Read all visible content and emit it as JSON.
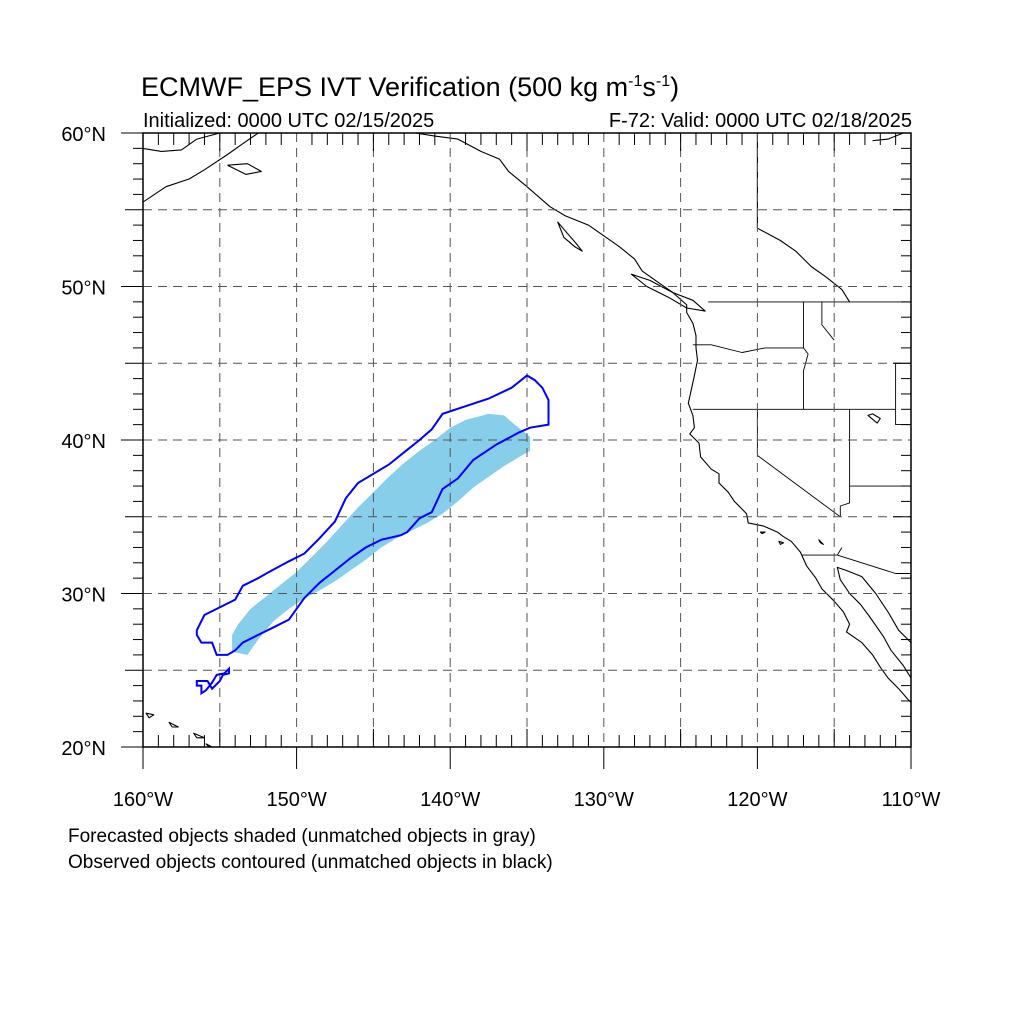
{
  "title": {
    "prefix": "ECMWF_EPS IVT Verification (500 kg m",
    "exp1": "-1",
    "mid": "s",
    "exp2": "-1",
    "suffix": ")"
  },
  "initialized": "Initialized: 0000 UTC 02/15/2025",
  "valid": "F-72: Valid: 0000 UTC 02/18/2025",
  "footnotes": [
    "Forecasted objects shaded (unmatched objects in gray)",
    "Observed objects contoured (unmatched objects in black)"
  ],
  "map": {
    "lon_range": [
      -160,
      -110
    ],
    "lat_range": [
      20,
      60
    ],
    "lon_labels": [
      {
        "lon": -160,
        "text": "160°W"
      },
      {
        "lon": -150,
        "text": "150°W"
      },
      {
        "lon": -140,
        "text": "140°W"
      },
      {
        "lon": -130,
        "text": "130°W"
      },
      {
        "lon": -120,
        "text": "120°W"
      },
      {
        "lon": -110,
        "text": "110°W"
      }
    ],
    "lat_labels": [
      {
        "lat": 60,
        "text": "60°N"
      },
      {
        "lat": 50,
        "text": "50°N"
      },
      {
        "lat": 40,
        "text": "40°N"
      },
      {
        "lat": 30,
        "text": "30°N"
      },
      {
        "lat": 20,
        "text": "20°N"
      }
    ],
    "colors": {
      "forecast_fill": "#87ceeb",
      "observed_contour": "#0000ff",
      "coast": "#000000",
      "grid": "#555555"
    },
    "forecast_object": [
      [
        -154.2,
        27.3
      ],
      [
        -153.8,
        28.0
      ],
      [
        -153.0,
        29.0
      ],
      [
        -152.0,
        29.8
      ],
      [
        -151.0,
        30.6
      ],
      [
        -150.0,
        31.4
      ],
      [
        -149.0,
        32.4
      ],
      [
        -148.0,
        33.4
      ],
      [
        -147.0,
        34.5
      ],
      [
        -146.0,
        35.6
      ],
      [
        -145.0,
        36.6
      ],
      [
        -144.0,
        37.6
      ],
      [
        -143.0,
        38.5
      ],
      [
        -142.0,
        39.3
      ],
      [
        -141.0,
        40.0
      ],
      [
        -140.0,
        40.8
      ],
      [
        -139.0,
        41.3
      ],
      [
        -137.5,
        41.7
      ],
      [
        -136.5,
        41.6
      ],
      [
        -135.8,
        41.0
      ],
      [
        -134.8,
        40.2
      ],
      [
        -134.8,
        39.3
      ],
      [
        -135.5,
        38.9
      ],
      [
        -136.5,
        38.3
      ],
      [
        -137.5,
        37.6
      ],
      [
        -138.5,
        36.9
      ],
      [
        -139.5,
        36.0
      ],
      [
        -140.5,
        35.2
      ],
      [
        -141.5,
        34.6
      ],
      [
        -142.5,
        34.1
      ],
      [
        -143.5,
        33.6
      ],
      [
        -144.5,
        33.0
      ],
      [
        -145.5,
        32.2
      ],
      [
        -146.5,
        31.5
      ],
      [
        -147.5,
        30.8
      ],
      [
        -148.5,
        30.2
      ],
      [
        -149.5,
        29.7
      ],
      [
        -150.5,
        29.0
      ],
      [
        -151.5,
        28.2
      ],
      [
        -152.5,
        27.0
      ],
      [
        -153.2,
        26.0
      ],
      [
        -154.2,
        26.2
      ]
    ],
    "observed_object": [
      [
        -156.5,
        27.6
      ],
      [
        -156.0,
        28.6
      ],
      [
        -155.2,
        29.0
      ],
      [
        -154.0,
        29.6
      ],
      [
        -153.5,
        30.5
      ],
      [
        -152.5,
        31.0
      ],
      [
        -151.8,
        31.4
      ],
      [
        -150.5,
        32.1
      ],
      [
        -149.5,
        32.6
      ],
      [
        -148.5,
        33.6
      ],
      [
        -147.5,
        34.7
      ],
      [
        -146.8,
        36.2
      ],
      [
        -146.0,
        37.2
      ],
      [
        -145.0,
        37.8
      ],
      [
        -144.0,
        38.4
      ],
      [
        -143.0,
        39.2
      ],
      [
        -142.0,
        40.0
      ],
      [
        -141.2,
        40.7
      ],
      [
        -140.5,
        41.7
      ],
      [
        -139.0,
        42.2
      ],
      [
        -137.5,
        42.7
      ],
      [
        -136.0,
        43.4
      ],
      [
        -135.0,
        44.2
      ],
      [
        -134.5,
        43.9
      ],
      [
        -134.0,
        43.4
      ],
      [
        -133.6,
        42.6
      ],
      [
        -133.6,
        41.0
      ],
      [
        -134.8,
        40.8
      ],
      [
        -135.5,
        40.5
      ],
      [
        -137.0,
        39.7
      ],
      [
        -138.5,
        38.7
      ],
      [
        -139.5,
        37.5
      ],
      [
        -140.5,
        36.8
      ],
      [
        -141.2,
        35.3
      ],
      [
        -142.0,
        34.9
      ],
      [
        -142.8,
        34.0
      ],
      [
        -143.2,
        33.8
      ],
      [
        -144.5,
        33.5
      ],
      [
        -145.5,
        33.0
      ],
      [
        -146.5,
        32.3
      ],
      [
        -147.5,
        31.5
      ],
      [
        -148.5,
        30.7
      ],
      [
        -149.5,
        29.7
      ],
      [
        -150.5,
        28.3
      ],
      [
        -151.5,
        27.8
      ],
      [
        -152.5,
        27.3
      ],
      [
        -153.5,
        26.8
      ],
      [
        -154.0,
        26.3
      ],
      [
        -154.5,
        26.0
      ],
      [
        -155.2,
        26.0
      ],
      [
        -155.5,
        26.8
      ],
      [
        -156.2,
        26.8
      ],
      [
        -156.5,
        27.3
      ]
    ],
    "observed_small": [
      [
        -156.5,
        24.3
      ],
      [
        -155.8,
        24.3
      ],
      [
        -155.5,
        23.8
      ],
      [
        -155.0,
        24.3
      ],
      [
        -154.8,
        24.7
      ],
      [
        -154.4,
        24.8
      ],
      [
        -154.4,
        25.1
      ],
      [
        -154.7,
        24.8
      ],
      [
        -155.2,
        24.7
      ],
      [
        -155.5,
        24.2
      ],
      [
        -155.9,
        23.7
      ],
      [
        -156.2,
        23.5
      ],
      [
        -156.2,
        24.0
      ],
      [
        -156.5,
        24.0
      ]
    ],
    "coastline_na": [
      [
        -148.5,
        60.0
      ],
      [
        -146.5,
        60.8
      ],
      [
        -143.5,
        60.2
      ],
      [
        -141.0,
        59.8
      ],
      [
        -139.5,
        59.6
      ],
      [
        -138.0,
        58.8
      ],
      [
        -136.8,
        58.3
      ],
      [
        -136.2,
        57.5
      ],
      [
        -135.0,
        56.5
      ],
      [
        -133.5,
        55.2
      ],
      [
        -132.5,
        54.6
      ],
      [
        -131.0,
        54.0
      ],
      [
        -130.0,
        53.3
      ],
      [
        -129.0,
        52.6
      ],
      [
        -128.0,
        51.8
      ],
      [
        -127.5,
        51.0
      ],
      [
        -126.5,
        50.3
      ],
      [
        -125.5,
        49.6
      ],
      [
        -124.6,
        48.8
      ],
      [
        -124.6,
        48.3
      ],
      [
        -124.2,
        47.6
      ],
      [
        -124.0,
        46.8
      ],
      [
        -124.0,
        46.0
      ],
      [
        -123.9,
        45.2
      ],
      [
        -124.1,
        44.2
      ],
      [
        -124.3,
        43.3
      ],
      [
        -124.5,
        42.4
      ],
      [
        -124.2,
        41.6
      ],
      [
        -124.1,
        40.8
      ],
      [
        -124.4,
        40.4
      ],
      [
        -123.8,
        39.8
      ],
      [
        -123.7,
        38.9
      ],
      [
        -123.0,
        38.1
      ],
      [
        -122.5,
        37.8
      ],
      [
        -122.5,
        37.2
      ],
      [
        -121.9,
        36.6
      ],
      [
        -121.5,
        36.0
      ],
      [
        -120.7,
        35.2
      ],
      [
        -120.6,
        34.6
      ],
      [
        -119.6,
        34.4
      ],
      [
        -118.7,
        34.0
      ],
      [
        -118.3,
        33.7
      ],
      [
        -117.8,
        33.4
      ],
      [
        -117.2,
        32.7
      ],
      [
        -116.8,
        31.8
      ],
      [
        -116.2,
        31.0
      ],
      [
        -115.8,
        30.3
      ],
      [
        -115.0,
        29.5
      ],
      [
        -114.4,
        28.8
      ],
      [
        -114.0,
        28.0
      ],
      [
        -114.2,
        27.5
      ],
      [
        -113.2,
        26.8
      ],
      [
        -112.5,
        26.0
      ],
      [
        -112.0,
        25.2
      ],
      [
        -111.5,
        24.5
      ],
      [
        -110.8,
        23.8
      ],
      [
        -110.2,
        23.1
      ],
      [
        -110.0,
        22.9
      ]
    ],
    "baja_gulf": [
      [
        -110.0,
        24.5
      ],
      [
        -110.5,
        25.3
      ],
      [
        -111.3,
        26.3
      ],
      [
        -111.8,
        27.2
      ],
      [
        -112.7,
        28.5
      ],
      [
        -113.3,
        29.3
      ],
      [
        -114.0,
        30.0
      ],
      [
        -114.6,
        30.9
      ],
      [
        -114.8,
        31.7
      ],
      [
        -114.2,
        31.5
      ],
      [
        -113.2,
        31.1
      ],
      [
        -112.3,
        30.0
      ],
      [
        -111.5,
        28.8
      ],
      [
        -110.8,
        27.6
      ],
      [
        -110.0,
        26.8
      ]
    ],
    "borders": [
      [
        [
          -123.2,
          49.0
        ],
        [
          -110.0,
          49.0
        ]
      ],
      [
        [
          -124.2,
          46.2
        ],
        [
          -123.0,
          46.2
        ],
        [
          -121.0,
          45.7
        ],
        [
          -119.5,
          46.0
        ],
        [
          -117.0,
          46.0
        ]
      ],
      [
        [
          -117.0,
          49.0
        ],
        [
          -117.0,
          46.0
        ],
        [
          -116.7,
          45.6
        ],
        [
          -117.0,
          44.5
        ],
        [
          -117.0,
          42.0
        ]
      ],
      [
        [
          -124.2,
          42.0
        ],
        [
          -111.0,
          42.0
        ]
      ],
      [
        [
          -120.0,
          42.0
        ],
        [
          -120.0,
          39.0
        ],
        [
          -114.6,
          35.0
        ]
      ],
      [
        [
          -114.0,
          42.0
        ],
        [
          -114.0,
          35.9
        ],
        [
          -114.6,
          35.7
        ],
        [
          -114.6,
          35.0
        ]
      ],
      [
        [
          -111.0,
          45.0
        ],
        [
          -110.0,
          45.0
        ]
      ],
      [
        [
          -111.0,
          45.0
        ],
        [
          -111.0,
          41.0
        ],
        [
          -110.0,
          41.0
        ]
      ],
      [
        [
          -114.0,
          37.0
        ],
        [
          -110.0,
          37.0
        ]
      ],
      [
        [
          -114.5,
          33.0
        ],
        [
          -114.8,
          32.5
        ],
        [
          -117.1,
          32.5
        ]
      ],
      [
        [
          -114.8,
          32.5
        ],
        [
          -111.0,
          31.3
        ],
        [
          -110.0,
          31.3
        ]
      ],
      [
        [
          -115.8,
          49.0
        ],
        [
          -115.8,
          47.5
        ],
        [
          -115.0,
          46.5
        ]
      ]
    ],
    "bc_inland": [
      [
        -120.0,
        60.0
      ],
      [
        -120.0,
        53.8
      ],
      [
        -118.5,
        53.0
      ],
      [
        -117.5,
        52.3
      ],
      [
        -116.5,
        51.3
      ],
      [
        -115.5,
        50.6
      ],
      [
        -114.5,
        49.8
      ],
      [
        -114.0,
        49.0
      ]
    ],
    "islands": [
      [
        [
          -133.0,
          54.2
        ],
        [
          -132.4,
          53.5
        ],
        [
          -131.8,
          52.8
        ],
        [
          -131.4,
          52.3
        ],
        [
          -131.9,
          52.6
        ],
        [
          -132.6,
          53.2
        ],
        [
          -133.0,
          54.2
        ]
      ],
      [
        [
          -128.2,
          50.8
        ],
        [
          -127.0,
          50.4
        ],
        [
          -125.5,
          49.6
        ],
        [
          -124.2,
          49.1
        ],
        [
          -123.4,
          48.4
        ],
        [
          -124.6,
          48.6
        ],
        [
          -125.8,
          49.3
        ],
        [
          -127.2,
          50.0
        ],
        [
          -128.2,
          50.8
        ]
      ],
      [
        [
          -155.9,
          20.2
        ],
        [
          -155.2,
          19.5
        ],
        [
          -154.8,
          19.5
        ],
        [
          -155.5,
          20.0
        ],
        [
          -155.9,
          20.2
        ]
      ],
      [
        [
          -156.7,
          20.9
        ],
        [
          -156.0,
          20.6
        ],
        [
          -156.5,
          20.6
        ],
        [
          -156.7,
          20.9
        ]
      ],
      [
        [
          -158.3,
          21.6
        ],
        [
          -157.7,
          21.3
        ],
        [
          -158.1,
          21.3
        ],
        [
          -158.3,
          21.6
        ]
      ],
      [
        [
          -159.8,
          22.2
        ],
        [
          -159.3,
          22.1
        ],
        [
          -159.6,
          21.9
        ],
        [
          -159.8,
          22.2
        ]
      ],
      [
        [
          -119.8,
          34.0
        ],
        [
          -119.5,
          34.0
        ],
        [
          -119.7,
          33.9
        ],
        [
          -119.8,
          34.0
        ]
      ],
      [
        [
          -118.6,
          33.4
        ],
        [
          -118.3,
          33.3
        ],
        [
          -118.5,
          33.2
        ],
        [
          -118.6,
          33.4
        ]
      ]
    ],
    "alaska": [
      [
        [
          -160.0,
          55.5
        ],
        [
          -158.5,
          56.5
        ],
        [
          -157.0,
          57.0
        ],
        [
          -156.0,
          57.6
        ],
        [
          -154.5,
          58.6
        ],
        [
          -153.5,
          59.3
        ],
        [
          -152.5,
          60.0
        ]
      ],
      [
        [
          -154.5,
          57.9
        ],
        [
          -153.3,
          57.3
        ],
        [
          -152.3,
          57.5
        ],
        [
          -153.2,
          58.0
        ],
        [
          -154.5,
          57.9
        ]
      ],
      [
        [
          -160.0,
          59.0
        ],
        [
          -158.8,
          58.8
        ],
        [
          -157.5,
          58.9
        ],
        [
          -156.5,
          59.6
        ],
        [
          -155.0,
          60.0
        ]
      ]
    ],
    "hudson_ne": [
      [
        -112.5,
        59.5
      ],
      [
        -111.5,
        59.6
      ],
      [
        -110.5,
        60.0
      ],
      [
        -110.0,
        60.0
      ]
    ],
    "salton": [
      [
        -116.0,
        33.5
      ],
      [
        -115.7,
        33.2
      ],
      [
        -115.9,
        33.3
      ],
      [
        -116.0,
        33.5
      ]
    ],
    "gsl": [
      [
        -112.8,
        41.6
      ],
      [
        -112.2,
        41.1
      ],
      [
        -112.0,
        41.4
      ],
      [
        -112.5,
        41.7
      ],
      [
        -112.8,
        41.6
      ]
    ]
  }
}
